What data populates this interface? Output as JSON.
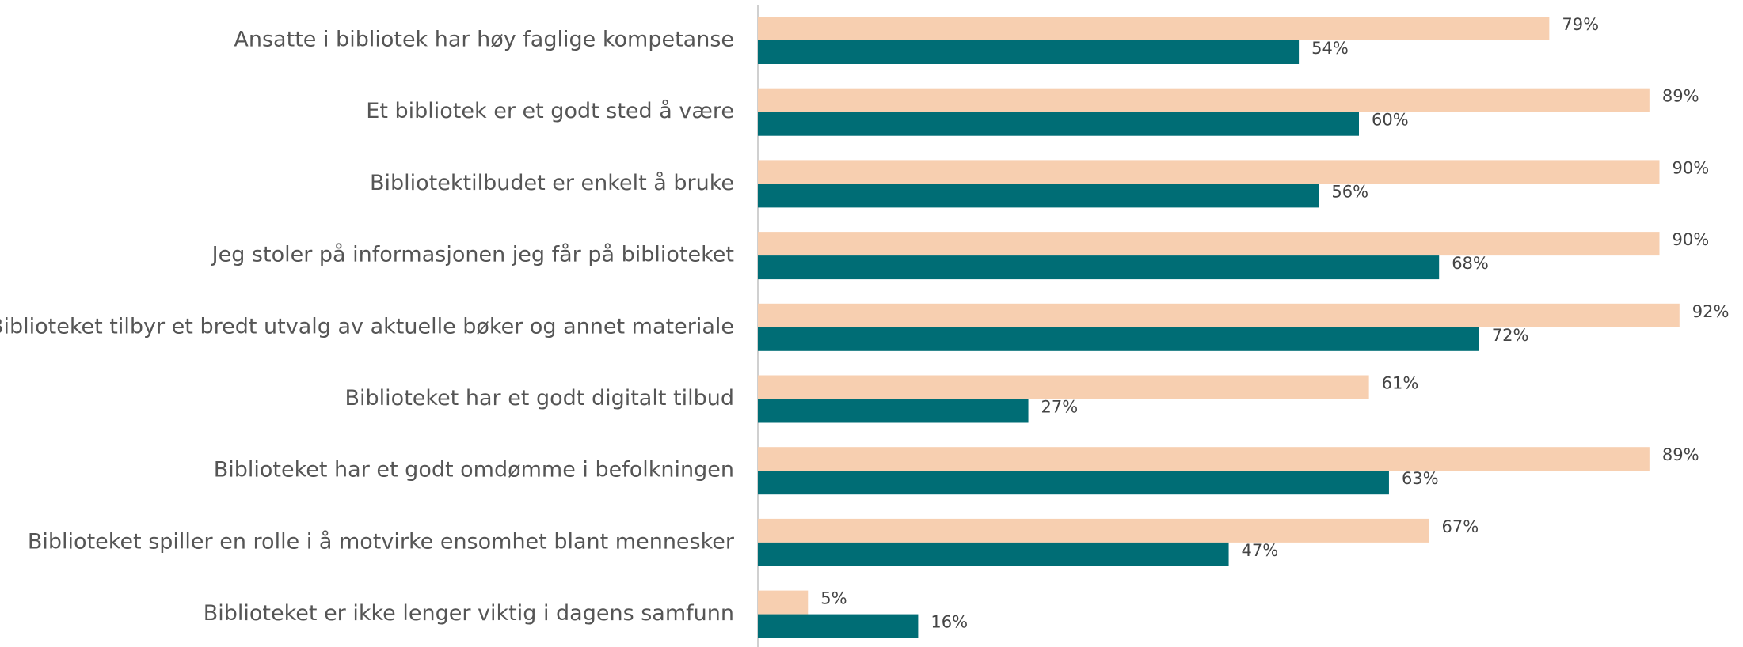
{
  "chart_data": {
    "type": "hbar",
    "categories": [
      "Ansatte i bibliotek har høy faglige kompetanse",
      "Et bibliotek er et godt sted å være",
      "Bibliotektilbudet er enkelt å bruke",
      "Jeg stoler på informasjonen jeg får på biblioteket",
      "Biblioteket tilbyr et bredt utvalg av aktuelle bøker og annet materiale",
      "Biblioteket har et godt digitalt tilbud",
      "Biblioteket har et godt omdømme i befolkningen",
      "Biblioteket spiller en rolle i å motvirke ensomhet blant mennesker",
      "Biblioteket er ikke lenger viktig i dagens samfunn"
    ],
    "series": [
      {
        "color": "#f7cfb0",
        "values": [
          79,
          89,
          90,
          90,
          92,
          61,
          89,
          67,
          5
        ],
        "value_labels": [
          "79%",
          "89%",
          "90%",
          "90%",
          "92%",
          "61%",
          "89%",
          "67%",
          "5%"
        ]
      },
      {
        "color": "#006d75",
        "values": [
          54,
          60,
          56,
          68,
          72,
          27,
          63,
          47,
          16
        ],
        "value_labels": [
          "54%",
          "60%",
          "56%",
          "68%",
          "72%",
          "27%",
          "63%",
          "47%",
          "16%"
        ]
      }
    ],
    "xlim": [
      0,
      100
    ]
  }
}
